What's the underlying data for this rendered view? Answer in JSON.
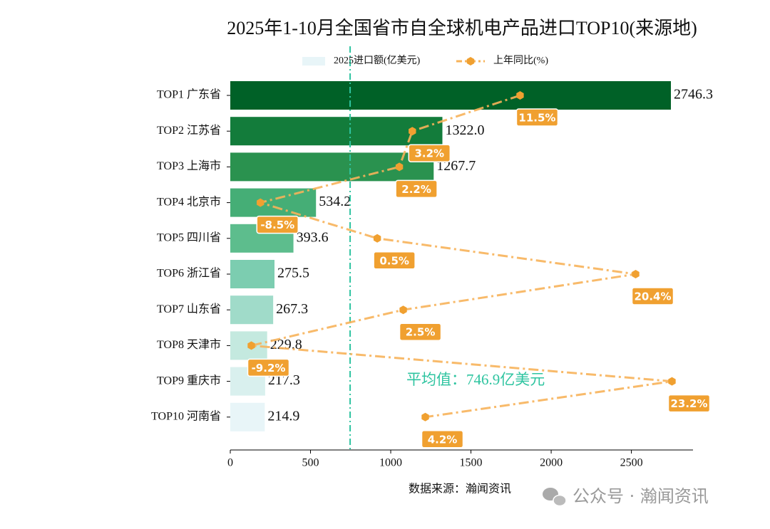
{
  "chart_data": {
    "type": "bar-line",
    "orientation": "horizontal",
    "title": "2025年1-10月全国省市自全球机电产品进口TOP10(来源地)",
    "categories": [
      "TOP1 广东省",
      "TOP2 江苏省",
      "TOP3 上海市",
      "TOP4 北京市",
      "TOP5 四川省",
      "TOP6 浙江省",
      "TOP7 山东省",
      "TOP8 天津市",
      "TOP9 重庆市",
      "TOP10 河南省"
    ],
    "series": [
      {
        "name": "2025进口额(亿美元)",
        "color": "#e8f5f8",
        "colors": [
          "#006127",
          "#137c3b",
          "#2a924f",
          "#45ae76",
          "#5dbd8d",
          "#7ccdb0",
          "#a0dbc9",
          "#c4e9df",
          "#d9f0ee",
          "#e8f5f8"
        ],
        "values": [
          2746.3,
          1322.0,
          1267.7,
          534.2,
          393.6,
          275.5,
          267.3,
          229.8,
          217.3,
          214.9
        ],
        "value_labels": [
          "2746.3",
          "1322.0",
          "1267.7",
          "534.2",
          "393.6",
          "275.5",
          "267.3",
          "229.8",
          "217.3",
          "214.9"
        ]
      },
      {
        "name": "上年同比(%)",
        "color": "#f7b35a",
        "marker_color": "#f0a030",
        "axis": "x2",
        "values": [
          11.5,
          3.2,
          2.2,
          -8.5,
          0.5,
          20.4,
          2.5,
          -9.2,
          23.2,
          4.2
        ],
        "value_labels": [
          "11.5%",
          "3.2%",
          "2.2%",
          "-8.5%",
          "0.5%",
          "20.4%",
          "2.5%",
          "-9.2%",
          "23.2%",
          "4.2%"
        ]
      }
    ],
    "xlim": [
      0,
      2884
    ],
    "xticks": [
      0,
      500,
      1000,
      1500,
      2000,
      2500
    ],
    "x2lim": [
      -10.82,
      24.82
    ],
    "mean_line": {
      "value": 746.9,
      "label": "平均值：746.9亿美元",
      "color": "#2ec4a0"
    },
    "source": "数据来源：瀚闻资讯",
    "watermark": "公众号 · 瀚闻资讯",
    "legend": "upper center"
  }
}
